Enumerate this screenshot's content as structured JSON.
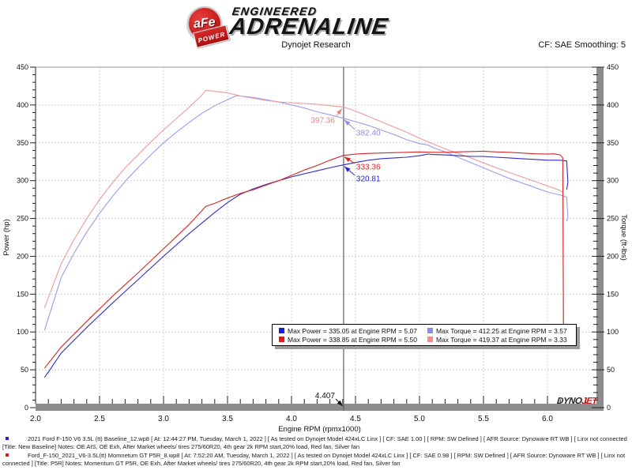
{
  "header": {
    "logo": {
      "afe": "aFe",
      "power": "POWER",
      "engineered": "ENGINEERED",
      "adrenaline": "ADRENALINE"
    },
    "title": "Dynojet Research",
    "smoothing": "CF: SAE Smoothing: 5"
  },
  "chart_data": {
    "type": "line",
    "xlabel": "Engine RPM (rpmx1000)",
    "ylabel_left": "Power (hp)",
    "ylabel_right": "Torque (ft-lbs)",
    "xlim": [
      2.0,
      6.4
    ],
    "ylim": [
      0,
      450
    ],
    "x_major_ticks": [
      2.0,
      2.5,
      3.0,
      3.5,
      4.0,
      4.5,
      5.0,
      5.5,
      6.0
    ],
    "x_minor_step": 0.1,
    "y_major_ticks": [
      0,
      50,
      100,
      150,
      200,
      250,
      300,
      350,
      400,
      450
    ],
    "y_minor_step": 10,
    "grid": true,
    "cursor": {
      "rpm": 4.407,
      "label": "4.407"
    },
    "series": [
      {
        "name": "baseline-torque",
        "axis": "right",
        "color": "#9c9cea",
        "points": [
          [
            2.07,
            102
          ],
          [
            2.2,
            172
          ],
          [
            2.3,
            204
          ],
          [
            2.4,
            232
          ],
          [
            2.5,
            257
          ],
          [
            2.6,
            279
          ],
          [
            2.7,
            299
          ],
          [
            2.8,
            317
          ],
          [
            2.9,
            334
          ],
          [
            3.0,
            350
          ],
          [
            3.1,
            364
          ],
          [
            3.2,
            377
          ],
          [
            3.3,
            389
          ],
          [
            3.4,
            399
          ],
          [
            3.5,
            407
          ],
          [
            3.57,
            412.3
          ],
          [
            3.65,
            411
          ],
          [
            3.7,
            410
          ],
          [
            3.8,
            407
          ],
          [
            3.9,
            404
          ],
          [
            4.0,
            400
          ],
          [
            4.1,
            396
          ],
          [
            4.2,
            391
          ],
          [
            4.3,
            387
          ],
          [
            4.407,
            382.4
          ],
          [
            4.5,
            378
          ],
          [
            4.6,
            373
          ],
          [
            4.7,
            367
          ],
          [
            4.8,
            361
          ],
          [
            4.9,
            354
          ],
          [
            5.0,
            349
          ],
          [
            5.07,
            347
          ],
          [
            5.1,
            344
          ],
          [
            5.2,
            338
          ],
          [
            5.3,
            331
          ],
          [
            5.4,
            324
          ],
          [
            5.5,
            317
          ],
          [
            5.6,
            310
          ],
          [
            5.7,
            303
          ],
          [
            5.8,
            297
          ],
          [
            5.9,
            291
          ],
          [
            6.0,
            285
          ],
          [
            6.1,
            281
          ],
          [
            6.15,
            278
          ],
          [
            6.16,
            252
          ],
          [
            6.15,
            246
          ]
        ]
      },
      {
        "name": "p5r-torque",
        "axis": "right",
        "color": "#ea9c9c",
        "points": [
          [
            2.07,
            132
          ],
          [
            2.2,
            190
          ],
          [
            2.3,
            222
          ],
          [
            2.4,
            250
          ],
          [
            2.5,
            275
          ],
          [
            2.6,
            297
          ],
          [
            2.7,
            317
          ],
          [
            2.8,
            334
          ],
          [
            2.9,
            351
          ],
          [
            3.0,
            367
          ],
          [
            3.1,
            382
          ],
          [
            3.2,
            397
          ],
          [
            3.3,
            413
          ],
          [
            3.33,
            419.4
          ],
          [
            3.4,
            418
          ],
          [
            3.5,
            416
          ],
          [
            3.6,
            412
          ],
          [
            3.7,
            409
          ],
          [
            3.8,
            406
          ],
          [
            3.9,
            404
          ],
          [
            4.0,
            403
          ],
          [
            4.1,
            402
          ],
          [
            4.2,
            401
          ],
          [
            4.3,
            399
          ],
          [
            4.407,
            397.4
          ],
          [
            4.5,
            392
          ],
          [
            4.6,
            385
          ],
          [
            4.7,
            378
          ],
          [
            4.8,
            371
          ],
          [
            4.9,
            364
          ],
          [
            5.0,
            356
          ],
          [
            5.1,
            349
          ],
          [
            5.2,
            342
          ],
          [
            5.3,
            336
          ],
          [
            5.4,
            330
          ],
          [
            5.5,
            323.5
          ],
          [
            5.6,
            317
          ],
          [
            5.7,
            311
          ],
          [
            5.8,
            305
          ],
          [
            5.9,
            299
          ],
          [
            6.0,
            293
          ],
          [
            6.05,
            290
          ],
          [
            6.1,
            287
          ],
          [
            6.12,
            284
          ],
          [
            6.125,
            92
          ]
        ]
      },
      {
        "name": "baseline-power",
        "axis": "left",
        "color": "#2d2dc4",
        "points": [
          [
            2.07,
            40
          ],
          [
            2.1,
            47
          ],
          [
            2.2,
            72
          ],
          [
            2.4,
            106
          ],
          [
            2.6,
            138
          ],
          [
            2.8,
            169
          ],
          [
            3.0,
            200
          ],
          [
            3.2,
            230
          ],
          [
            3.4,
            258
          ],
          [
            3.5,
            271
          ],
          [
            3.6,
            282
          ],
          [
            3.7,
            289
          ],
          [
            3.8,
            295
          ],
          [
            3.9,
            300
          ],
          [
            4.0,
            305
          ],
          [
            4.1,
            309
          ],
          [
            4.2,
            313
          ],
          [
            4.3,
            317
          ],
          [
            4.407,
            320.8
          ],
          [
            4.5,
            324
          ],
          [
            4.6,
            327
          ],
          [
            4.7,
            329
          ],
          [
            4.8,
            330
          ],
          [
            4.9,
            331
          ],
          [
            5.0,
            333
          ],
          [
            5.07,
            335.1
          ],
          [
            5.1,
            334.5
          ],
          [
            5.2,
            334
          ],
          [
            5.3,
            333
          ],
          [
            5.4,
            332
          ],
          [
            5.5,
            332
          ],
          [
            5.6,
            331
          ],
          [
            5.7,
            330
          ],
          [
            5.8,
            329
          ],
          [
            5.9,
            328
          ],
          [
            6.0,
            327
          ],
          [
            6.1,
            327
          ],
          [
            6.15,
            326
          ],
          [
            6.16,
            298
          ],
          [
            6.15,
            288
          ]
        ]
      },
      {
        "name": "p5r-power",
        "axis": "left",
        "color": "#d42828",
        "points": [
          [
            2.07,
            52
          ],
          [
            2.2,
            80
          ],
          [
            2.4,
            114
          ],
          [
            2.6,
            147
          ],
          [
            2.8,
            178
          ],
          [
            3.0,
            210
          ],
          [
            3.2,
            242
          ],
          [
            3.33,
            266
          ],
          [
            3.4,
            270
          ],
          [
            3.5,
            277
          ],
          [
            3.6,
            283
          ],
          [
            3.7,
            288
          ],
          [
            3.8,
            294
          ],
          [
            3.9,
            300
          ],
          [
            4.0,
            307
          ],
          [
            4.1,
            314
          ],
          [
            4.2,
            320
          ],
          [
            4.3,
            327
          ],
          [
            4.407,
            333.4
          ],
          [
            4.5,
            335
          ],
          [
            4.6,
            336
          ],
          [
            4.7,
            336.5
          ],
          [
            4.8,
            337
          ],
          [
            4.9,
            337.5
          ],
          [
            5.0,
            338
          ],
          [
            5.1,
            337.5
          ],
          [
            5.2,
            337.5
          ],
          [
            5.3,
            338
          ],
          [
            5.4,
            338.5
          ],
          [
            5.5,
            338.9
          ],
          [
            5.6,
            338
          ],
          [
            5.7,
            337.5
          ],
          [
            5.8,
            336.5
          ],
          [
            5.9,
            335.5
          ],
          [
            6.0,
            335
          ],
          [
            6.05,
            335.5
          ],
          [
            6.1,
            334
          ],
          [
            6.12,
            330
          ],
          [
            6.125,
            92
          ]
        ]
      }
    ],
    "annotations": [
      {
        "text": "397.36",
        "value": 397.36,
        "color": "#e58585",
        "side": "left",
        "dy": 20
      },
      {
        "text": "382.40",
        "value": 382.4,
        "color": "#8c8ce8",
        "side": "right",
        "dy": 22
      },
      {
        "text": "333.36",
        "value": 333.36,
        "color": "#dd2020",
        "side": "right",
        "dy": 18
      },
      {
        "text": "320.81",
        "value": 320.81,
        "color": "#2424d8",
        "side": "right",
        "dy": 21
      }
    ]
  },
  "legend": {
    "rows": [
      {
        "power": {
          "color": "#1a1ae0",
          "text": "Max Power = 335.05 at Engine RPM = 5.07"
        },
        "torque": {
          "color": "#8c8cf0",
          "text": "Max Torque = 412.25 at Engine RPM = 3.57"
        }
      },
      {
        "power": {
          "color": "#e01a1a",
          "text": "Max Power = 338.85 at Engine RPM = 5.50"
        },
        "torque": {
          "color": "#f08c8c",
          "text": "Max Torque = 419.37 at Engine RPM = 3.33"
        }
      }
    ]
  },
  "branding": {
    "dyno": "DYNO",
    "jet": "JET"
  },
  "footer": {
    "entries": [
      {
        "color": "#2222cc",
        "line1": "2021 Ford F-150 V6 3.5L (tt) Baseline_12.wp8 [ At: 12:44:27 PM, Tuesday, March 1, 2022 ] [ As tested on Dynojet Model 424xLC Linx ] [ CF: SAE 1.00 ] [ RPM: SW Defined ] [ AFR Source: Dynoware RT WB ] [ Linx not connected",
        "line2": "[Title: New Baseline]  Notes: OE AIS, OE Exh, After Market wheels/ tires 275/60R20, 4th gear 2k RPM start,20% load, Red fan, Silver fan"
      },
      {
        "color": "#cc2222",
        "line1": "Ford_F-150_2021_V6-3.5L(tt) Momnetum GT P5R_8.wp8 [ At: 7:52:20 AM, Tuesday, March 1, 2022 ] [ As tested on Dynojet Model 424xLC Linx ] [ CF: SAE 0.98 ] [ RPM: SW Defined ] [ AFR Source: Dynoware RT WB ] [ Linx not",
        "line2": "connected ] [Title: P5R]  Notes: Momentum GT  P5R, OE Exh, After Market wheels/ tires 275/60R20, 4th gear 2k RPM start,20% load, Red fan, Silver fan"
      }
    ]
  }
}
